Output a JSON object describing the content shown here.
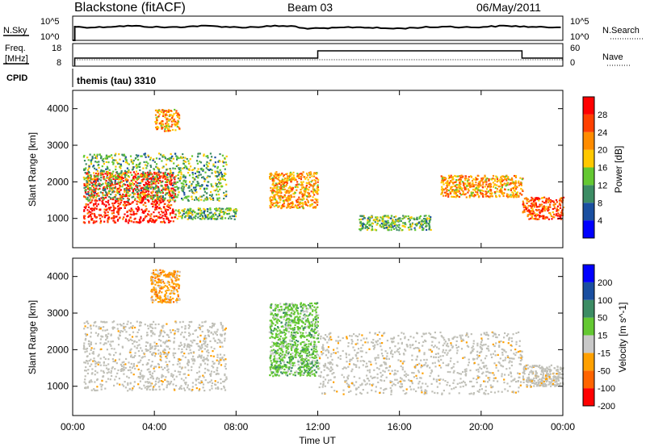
{
  "header": {
    "radar": "Blackstone (fitACF)",
    "beam": "Beam 03",
    "date": "06/May/2011"
  },
  "strip1": {
    "left_label": "N.Sky",
    "left_ticks": [
      "10^5",
      "10^0"
    ],
    "right_label": "N.Search",
    "right_ticks": [
      "10^5",
      "10^0"
    ]
  },
  "strip2": {
    "left_label_1": "Freq.",
    "left_label_2": "[MHz]",
    "left_ticks": [
      "18",
      "8"
    ],
    "right_label": "Nave",
    "right_ticks": [
      "60",
      "0"
    ]
  },
  "cpid": {
    "label": "CPID",
    "value": "themis (tau) 3310"
  },
  "colors": {
    "power": [
      "#0000ff",
      "#1a4fa0",
      "#3c8c64",
      "#64c832",
      "#ffc800",
      "#ff8c00",
      "#ff4000",
      "#ff0000"
    ],
    "velocity": [
      "#ff0000",
      "#ff6400",
      "#ffa000",
      "#c8c8c8",
      "#64c832",
      "#3c8c64",
      "#1a4fa0",
      "#0000ff"
    ],
    "ground_scatter": "#c0c0b8"
  },
  "chart_data": [
    {
      "type": "heatmap",
      "name": "power",
      "ylabel": "Slant Range [km]",
      "yticks": [
        "1000",
        "2000",
        "3000",
        "4000"
      ],
      "ylim": [
        200,
        4500
      ],
      "xlim_hours": [
        0,
        24
      ],
      "colorbar_label": "Power [dB]",
      "colorbar_ticks": [
        "4",
        "8",
        "12",
        "16",
        "20",
        "24",
        "28"
      ],
      "features": [
        {
          "t_start": 0.5,
          "t_end": 5.0,
          "range_start_km": 900,
          "range_end_km": 2300,
          "level": 7
        },
        {
          "t_start": 0.5,
          "t_end": 7.5,
          "range_start_km": 1500,
          "range_end_km": 2800,
          "level": 3
        },
        {
          "t_start": 4.0,
          "t_end": 5.2,
          "range_start_km": 3400,
          "range_end_km": 4000,
          "level": 5
        },
        {
          "t_start": 9.6,
          "t_end": 12.0,
          "range_start_km": 1300,
          "range_end_km": 2300,
          "level": 5
        },
        {
          "t_start": 5.0,
          "t_end": 8.0,
          "range_start_km": 1000,
          "range_end_km": 1300,
          "level": 3
        },
        {
          "t_start": 14.0,
          "t_end": 17.5,
          "range_start_km": 700,
          "range_end_km": 1100,
          "level": 3
        },
        {
          "t_start": 18.0,
          "t_end": 22.0,
          "range_start_km": 1600,
          "range_end_km": 2200,
          "level": 5
        },
        {
          "t_start": 22.0,
          "t_end": 24.0,
          "range_start_km": 1000,
          "range_end_km": 1600,
          "level": 6
        }
      ]
    },
    {
      "type": "heatmap",
      "name": "velocity",
      "ylabel": "Slant Range [km]",
      "yticks": [
        "1000",
        "2000",
        "3000",
        "4000"
      ],
      "ylim": [
        200,
        4500
      ],
      "xlabel": "Time UT",
      "xticks": [
        "00:00",
        "04:00",
        "08:00",
        "12:00",
        "16:00",
        "20:00",
        "00:00"
      ],
      "colorbar_label": "Velocity [m s^-1]",
      "colorbar_ticks": [
        "200",
        "100",
        "50",
        "15",
        "-15",
        "-50",
        "-100",
        "-200"
      ],
      "features": [
        {
          "t_start": 0.5,
          "t_end": 7.5,
          "range_start_km": 900,
          "range_end_km": 2800,
          "class": "ground_scatter"
        },
        {
          "t_start": 3.8,
          "t_end": 5.2,
          "range_start_km": 3300,
          "range_end_km": 4200,
          "class": "-50"
        },
        {
          "t_start": 9.6,
          "t_end": 12.0,
          "range_start_km": 1300,
          "range_end_km": 3300,
          "class": "15"
        },
        {
          "t_start": 12.0,
          "t_end": 22.0,
          "range_start_km": 800,
          "range_end_km": 2500,
          "class": "ground_scatter"
        },
        {
          "t_start": 22.0,
          "t_end": 24.0,
          "range_start_km": 1000,
          "range_end_km": 1600,
          "class": "ground_scatter"
        }
      ]
    }
  ]
}
